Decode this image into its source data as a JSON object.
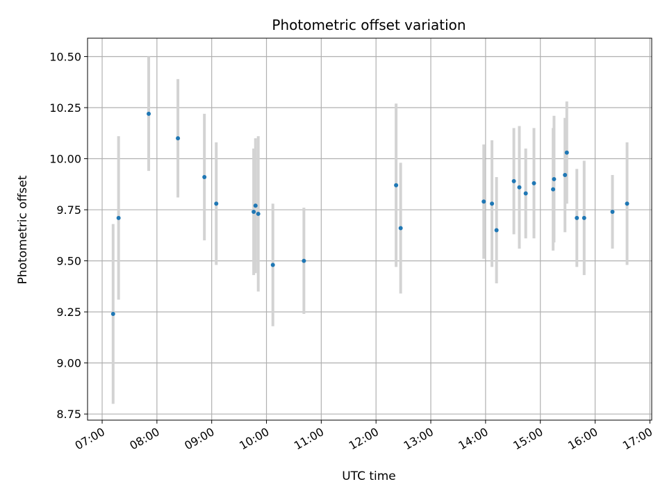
{
  "chart_data": {
    "type": "scatter",
    "title": "Photometric offset variation",
    "xlabel": "UTC time",
    "ylabel": "Photometric offset",
    "x_tick_labels": [
      "07:00",
      "08:00",
      "09:00",
      "10:00",
      "11:00",
      "12:00",
      "13:00",
      "14:00",
      "15:00",
      "16:00",
      "17:00"
    ],
    "y_tick_labels": [
      "8.75",
      "9.00",
      "9.25",
      "9.50",
      "9.75",
      "10.00",
      "10.25",
      "10.50"
    ],
    "y_ticks": [
      8.75,
      9.0,
      9.25,
      9.5,
      9.75,
      10.0,
      10.25,
      10.5
    ],
    "xlim": [
      "06:44",
      "17:02"
    ],
    "ylim": [
      8.72,
      10.59
    ],
    "grid": true,
    "colors": {
      "point": "#1f77b4",
      "errorbar": "#d3d3d3",
      "grid": "#b0b0b0"
    },
    "points": [
      {
        "x": "07:12",
        "y": 9.24,
        "yerr": 0.44
      },
      {
        "x": "07:18",
        "y": 9.71,
        "yerr": 0.4
      },
      {
        "x": "07:51",
        "y": 10.22,
        "yerr": 0.28
      },
      {
        "x": "08:23",
        "y": 10.1,
        "yerr": 0.29
      },
      {
        "x": "08:52",
        "y": 9.91,
        "yerr": 0.31
      },
      {
        "x": "09:05",
        "y": 9.78,
        "yerr": 0.3
      },
      {
        "x": "09:46",
        "y": 9.74,
        "yerr": 0.31
      },
      {
        "x": "09:48",
        "y": 9.77,
        "yerr": 0.33
      },
      {
        "x": "09:51",
        "y": 9.73,
        "yerr": 0.38
      },
      {
        "x": "10:07",
        "y": 9.48,
        "yerr": 0.3
      },
      {
        "x": "10:41",
        "y": 9.5,
        "yerr": 0.26
      },
      {
        "x": "12:22",
        "y": 9.87,
        "yerr": 0.4
      },
      {
        "x": "12:27",
        "y": 9.66,
        "yerr": 0.32
      },
      {
        "x": "13:58",
        "y": 9.79,
        "yerr": 0.28
      },
      {
        "x": "14:07",
        "y": 9.78,
        "yerr": 0.31
      },
      {
        "x": "14:12",
        "y": 9.65,
        "yerr": 0.26
      },
      {
        "x": "14:31",
        "y": 9.89,
        "yerr": 0.26
      },
      {
        "x": "14:37",
        "y": 9.86,
        "yerr": 0.3
      },
      {
        "x": "14:44",
        "y": 9.83,
        "yerr": 0.22
      },
      {
        "x": "14:53",
        "y": 9.88,
        "yerr": 0.27
      },
      {
        "x": "15:14",
        "y": 9.85,
        "yerr": 0.3
      },
      {
        "x": "15:15",
        "y": 9.9,
        "yerr": 0.31
      },
      {
        "x": "15:27",
        "y": 9.92,
        "yerr": 0.28
      },
      {
        "x": "15:29",
        "y": 10.03,
        "yerr": 0.25
      },
      {
        "x": "15:40",
        "y": 9.71,
        "yerr": 0.24
      },
      {
        "x": "15:48",
        "y": 9.71,
        "yerr": 0.28
      },
      {
        "x": "16:19",
        "y": 9.74,
        "yerr": 0.18
      },
      {
        "x": "16:35",
        "y": 9.78,
        "yerr": 0.3
      }
    ]
  }
}
